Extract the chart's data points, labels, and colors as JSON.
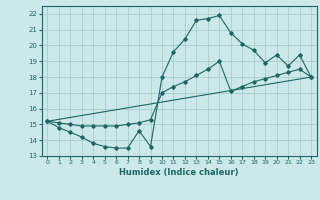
{
  "xlabel": "Humidex (Indice chaleur)",
  "bg_color": "#cce8e8",
  "grid_color": "#aacccc",
  "line_color": "#1a6666",
  "xlim": [
    -0.5,
    23.5
  ],
  "ylim": [
    13,
    22.5
  ],
  "xticks": [
    0,
    1,
    2,
    3,
    4,
    5,
    6,
    7,
    8,
    9,
    10,
    11,
    12,
    13,
    14,
    15,
    16,
    17,
    18,
    19,
    20,
    21,
    22,
    23
  ],
  "yticks": [
    13,
    14,
    15,
    16,
    17,
    18,
    19,
    20,
    21,
    22
  ],
  "line1_x": [
    0,
    1,
    2,
    3,
    4,
    5,
    6,
    7,
    8,
    9,
    10,
    11,
    12,
    13,
    14,
    15,
    16,
    17,
    18,
    19,
    20,
    21,
    22,
    23
  ],
  "line1_y": [
    15.2,
    14.8,
    14.5,
    14.2,
    13.8,
    13.6,
    13.5,
    13.5,
    14.6,
    13.6,
    18.0,
    19.6,
    20.4,
    21.6,
    21.7,
    21.9,
    20.8,
    20.1,
    19.7,
    18.9,
    19.4,
    18.7,
    19.4,
    18.0
  ],
  "line2_x": [
    0,
    1,
    2,
    3,
    4,
    5,
    6,
    7,
    8,
    9,
    10,
    11,
    12,
    13,
    14,
    15,
    16,
    17,
    18,
    19,
    20,
    21,
    22,
    23
  ],
  "line2_y": [
    15.2,
    15.1,
    15.0,
    14.9,
    14.9,
    14.9,
    14.9,
    15.0,
    15.1,
    15.3,
    17.0,
    17.4,
    17.7,
    18.1,
    18.5,
    19.0,
    17.1,
    17.4,
    17.7,
    17.9,
    18.1,
    18.3,
    18.5,
    18.0
  ],
  "line3_x": [
    0,
    23
  ],
  "line3_y": [
    15.2,
    18.0
  ]
}
